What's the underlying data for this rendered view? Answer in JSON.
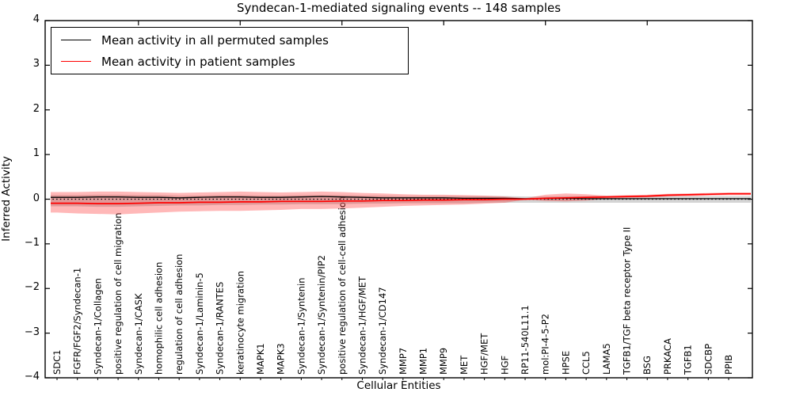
{
  "title": "Syndecan-1-mediated signaling events -- 148 samples",
  "axes": {
    "x_label": "Cellular Entities",
    "y_label": "Inferred Activity"
  },
  "legend": {
    "items": [
      {
        "label": "Mean activity in all permuted samples",
        "color": "#000000"
      },
      {
        "label": "Mean activity in patient samples",
        "color": "#ff0000"
      }
    ]
  },
  "chart_data": {
    "type": "line",
    "title": "Syndecan-1-mediated signaling events -- 148 samples",
    "xlabel": "Cellular Entities",
    "ylabel": "Inferred Activity",
    "ylim": [
      -4,
      4
    ],
    "yticks": [
      4,
      3,
      2,
      1,
      0,
      -1,
      -2,
      -3,
      -4
    ],
    "grid": false,
    "legend_position": "upper left",
    "zero_line": 0,
    "categories": [
      "SDC1",
      "FGFR/FGF2/Syndecan-1",
      "Syndecan-1/Collagen",
      "positive regulation of cell migration",
      "Syndecan-1/CASK",
      "homophilic cell adhesion",
      "regulation of cell adhesion",
      "Syndecan-1/Laminin-5",
      "Syndecan-1/RANTES",
      "keratinocyte migration",
      "MAPK1",
      "MAPK3",
      "Syndecan-1/Syntenin",
      "Syndecan-1/Syntenin/PIP2",
      "positive regulation of cell-cell adhesion",
      "Syndecan-1/HGF/MET",
      "Syndecan-1/CD147",
      "MMP7",
      "MMP1",
      "MMP9",
      "MET",
      "HGF/MET",
      "HGF",
      "RP11-540L11.1",
      "mol:PI-4-5-P2",
      "HPSE",
      "CCL5",
      "LAMA5",
      "TGFB1/TGF beta receptor Type II",
      "BSG",
      "PRKACA",
      "TGFB1",
      "SDCBP",
      "PPIB"
    ],
    "series": [
      {
        "name": "Mean activity in all permuted samples",
        "color": "#000000",
        "values": [
          0.04,
          0.04,
          0.05,
          0.05,
          0.04,
          0.04,
          0.03,
          0.04,
          0.05,
          0.05,
          0.04,
          0.04,
          0.05,
          0.06,
          0.05,
          0.04,
          0.03,
          0.03,
          0.03,
          0.03,
          0.02,
          0.02,
          0.02,
          0.01,
          0.01,
          0.02,
          0.01,
          0.01,
          0.01,
          0.01,
          0.01,
          0.01,
          0.01,
          0.01
        ]
      },
      {
        "name": "Mean activity in patient samples",
        "color": "#ff0000",
        "values": [
          -0.09,
          -0.09,
          -0.1,
          -0.1,
          -0.09,
          -0.08,
          -0.08,
          -0.07,
          -0.07,
          -0.06,
          -0.06,
          -0.05,
          -0.05,
          -0.05,
          -0.04,
          -0.04,
          -0.03,
          -0.03,
          -0.02,
          -0.02,
          -0.01,
          -0.01,
          0.0,
          0.0,
          0.02,
          0.03,
          0.04,
          0.05,
          0.06,
          0.07,
          0.09,
          0.1,
          0.11,
          0.12
        ]
      }
    ],
    "bands": [
      {
        "name": "permuted-samples-band",
        "color": "#aaaaaa",
        "opacity": 0.5,
        "top": [
          0.09,
          0.09,
          0.1,
          0.1,
          0.09,
          0.09,
          0.08,
          0.08,
          0.09,
          0.09,
          0.08,
          0.08,
          0.09,
          0.09,
          0.09,
          0.08,
          0.08,
          0.07,
          0.07,
          0.07,
          0.07,
          0.07,
          0.07,
          0.06,
          0.06,
          0.07,
          0.07,
          0.07,
          0.07,
          0.07,
          0.07,
          0.07,
          0.07,
          0.07
        ],
        "bottom": [
          -0.16,
          -0.16,
          -0.17,
          -0.17,
          -0.16,
          -0.15,
          -0.14,
          -0.14,
          -0.13,
          -0.13,
          -0.12,
          -0.12,
          -0.11,
          -0.11,
          -0.11,
          -0.1,
          -0.1,
          -0.09,
          -0.09,
          -0.09,
          -0.09,
          -0.08,
          -0.08,
          -0.08,
          -0.08,
          -0.08,
          -0.08,
          -0.08,
          -0.08,
          -0.08,
          -0.08,
          -0.08,
          -0.08,
          -0.08
        ]
      },
      {
        "name": "patient-samples-band",
        "color": "#ff0000",
        "opacity": 0.28,
        "top": [
          0.16,
          0.16,
          0.17,
          0.17,
          0.16,
          0.15,
          0.14,
          0.15,
          0.16,
          0.17,
          0.16,
          0.15,
          0.16,
          0.17,
          0.16,
          0.14,
          0.13,
          0.11,
          0.1,
          0.1,
          0.09,
          0.08,
          0.06,
          0.02,
          0.1,
          0.13,
          0.11,
          0.08,
          0.09,
          0.1,
          0.12,
          0.13,
          0.14,
          0.15
        ],
        "bottom": [
          -0.3,
          -0.32,
          -0.33,
          -0.34,
          -0.32,
          -0.3,
          -0.28,
          -0.27,
          -0.26,
          -0.26,
          -0.25,
          -0.24,
          -0.22,
          -0.22,
          -0.21,
          -0.19,
          -0.17,
          -0.15,
          -0.14,
          -0.13,
          -0.12,
          -0.1,
          -0.08,
          -0.01,
          -0.04,
          -0.05,
          -0.03,
          0.01,
          0.03,
          0.04,
          0.06,
          0.07,
          0.08,
          0.09
        ]
      }
    ]
  }
}
